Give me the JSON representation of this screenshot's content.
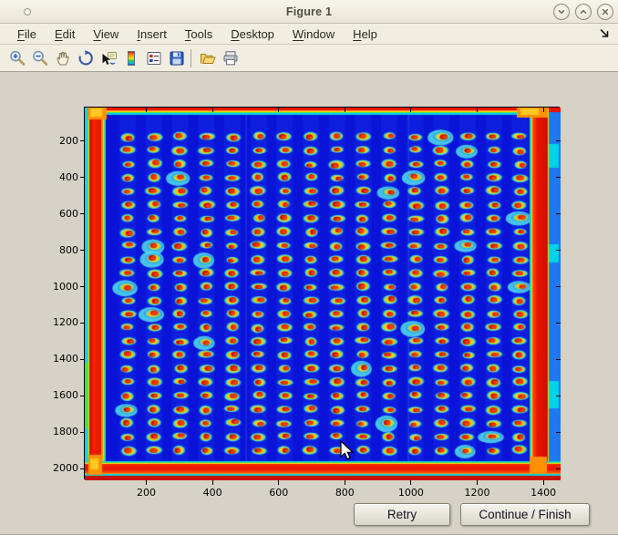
{
  "window": {
    "title": "Figure 1",
    "controls": [
      "roll-up",
      "maximize",
      "close"
    ]
  },
  "menu": {
    "items": [
      {
        "label": "File",
        "underline": 0
      },
      {
        "label": "Edit",
        "underline": 0
      },
      {
        "label": "View",
        "underline": 0
      },
      {
        "label": "Insert",
        "underline": 0
      },
      {
        "label": "Tools",
        "underline": 0
      },
      {
        "label": "Desktop",
        "underline": 0
      },
      {
        "label": "Window",
        "underline": 0
      },
      {
        "label": "Help",
        "underline": 0
      }
    ]
  },
  "toolbar": {
    "buttons": [
      "zoom-in",
      "zoom-out",
      "pan",
      "rotate-3d",
      "data-cursor",
      "colorbar",
      "insert-legend",
      "save"
    ],
    "separator_after": "save",
    "buttons_secondary": [
      "open",
      "print"
    ]
  },
  "chart_data": {
    "type": "heatmap",
    "title": "",
    "xlabel": "",
    "ylabel": "",
    "colormap": "jet",
    "description": "Pseudocolor (jet) image of a scanned assay plate: a 16-column by 24-row grid of spots (cyan halo, yellow-orange body, red core) on a deep blue background, with saturated red bands along all four image edges and orange hot blobs in the corners.",
    "x_range": [
      14,
      1452
    ],
    "y_range": [
      15,
      2065
    ],
    "x_ticks": [
      200,
      400,
      600,
      800,
      1000,
      1200,
      1400
    ],
    "y_ticks": [
      200,
      400,
      600,
      800,
      1000,
      1200,
      1400,
      1600,
      1800,
      2000
    ],
    "grid": false,
    "spot_grid": {
      "cols": 16,
      "rows": 24,
      "x_first": 144,
      "x_step": 79,
      "y_first": 175,
      "y_step": 75,
      "spot_rx": 23,
      "spot_ry": 25
    },
    "colors": {
      "background": "#0a14d8",
      "spot_halo": "#38d8f0",
      "spot_body": "#ffc81e",
      "spot_core": "#dd2400",
      "edge_red": "#e81400",
      "edge_orange": "#ff8800",
      "edge_yellow": "#ffe000",
      "edge_green": "#49e06b",
      "edge_cyan": "#00d4e8",
      "right_stripe_blue": "#1e78f0",
      "corner_blob": "#ff9000"
    }
  },
  "actions": {
    "retry_label": "Retry",
    "continue_label": "Continue / Finish"
  }
}
